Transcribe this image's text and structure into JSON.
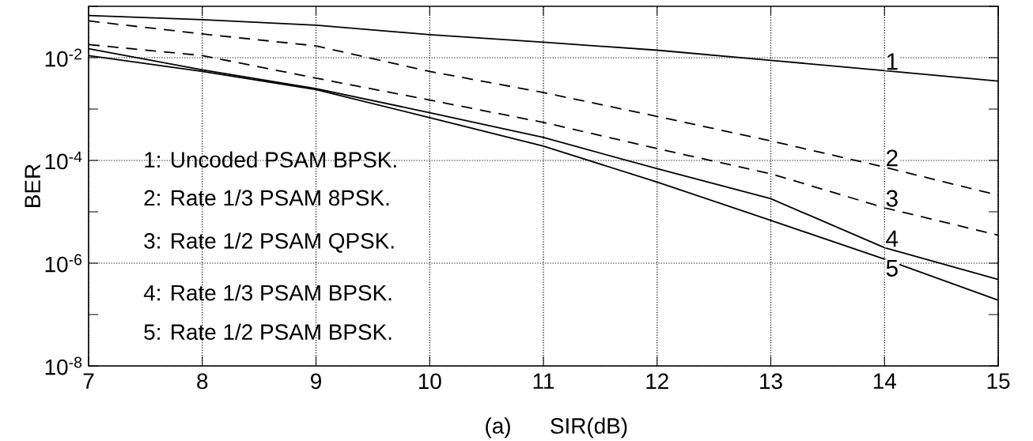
{
  "chart_data": {
    "type": "line",
    "xlabel": "SIR(dB)",
    "ylabel": "BER",
    "x": [
      7,
      8,
      9,
      10,
      11,
      12,
      13,
      14,
      15
    ],
    "series": [
      {
        "name": "1",
        "color": "#000000",
        "line_style": "solid",
        "values": [
          0.066,
          0.055,
          0.043,
          0.028,
          0.02,
          0.014,
          0.0089,
          0.0056,
          0.0035
        ]
      },
      {
        "name": "2",
        "color": "#000000",
        "line_style": "dashed",
        "values": [
          0.052,
          0.029,
          0.017,
          0.0054,
          0.0021,
          0.00072,
          0.00024,
          7.4e-05,
          2.1e-05
        ]
      },
      {
        "name": "3",
        "color": "#000000",
        "line_style": "dashed",
        "values": [
          0.018,
          0.011,
          0.004,
          0.0015,
          0.00055,
          0.00017,
          5.5e-05,
          1.2e-05,
          3.5e-06
        ]
      },
      {
        "name": "4",
        "color": "#000000",
        "line_style": "solid",
        "values": [
          0.015,
          0.0058,
          0.0025,
          0.00085,
          0.00028,
          6.9e-05,
          1.8e-05,
          2e-06,
          4.8e-07
        ]
      },
      {
        "name": "5",
        "color": "#000000",
        "line_style": "solid",
        "values": [
          0.011,
          0.0054,
          0.0024,
          0.00068,
          0.00019,
          3.8e-05,
          6.8e-06,
          1.2e-06,
          1.9e-07
        ]
      }
    ],
    "annotations": [
      "1: Uncoded PSAM BPSK.",
      "2: Rate 1/3 PSAM 8PSK.",
      "3: Rate 1/2 PSAM QPSK.",
      "4: Rate 1/3 PSAM BPSK.",
      "5: Rate 1/2 PSAM BPSK.",
      "(a)"
    ],
    "xlim": [
      7,
      15
    ],
    "ylim": [
      1e-08,
      0.1
    ],
    "log": "y",
    "xticks": [
      7,
      8,
      9,
      10,
      11,
      12,
      13,
      14,
      15
    ],
    "yticks": [
      {
        "value": 1e-08,
        "label": "10$^{-8}$"
      },
      {
        "value": 1e-07,
        "label": null
      },
      {
        "value": 1e-06,
        "label": "10$^{-6}$"
      },
      {
        "value": 1e-05,
        "label": null
      },
      {
        "value": 0.0001,
        "label": "10$^{-4}$"
      },
      {
        "value": 0.001,
        "label": null
      },
      {
        "value": 0.01,
        "label": "10$^{-2}$"
      },
      {
        "value": 0.1,
        "label": null
      }
    ],
    "grid": true,
    "marker": "none"
  }
}
